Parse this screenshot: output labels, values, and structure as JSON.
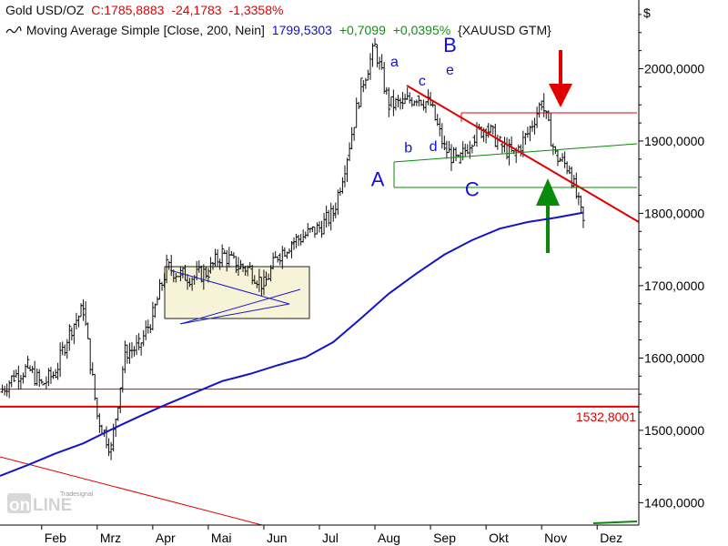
{
  "header": {
    "symbol_name": "Gold USD/OZ",
    "close_readout": "C:1785,8883",
    "change_abs": "-24,1783",
    "change_pct": "-1,3358%",
    "indicator_name": "Moving Average Simple [Close, 200, Nein]",
    "indicator_value": "1799,5303",
    "indicator_change_abs": "+0,7099",
    "indicator_change_pct": "+0,0395%",
    "instrument": "{XAUUSD GTM}"
  },
  "currency_label": "$",
  "logo": {
    "small_text": "Tradesignal",
    "big_text": "onLINE"
  },
  "colors": {
    "price_bar": "#111111",
    "moving_average": "#1414c8",
    "trendline": "#e00000",
    "support_line": "#0a8a0a",
    "down_arrow": "#e00000",
    "up_arrow": "#0a8a0a",
    "box_fill": "#f7f3d9"
  },
  "chart_data": {
    "type": "line",
    "y_axis": {
      "ticks": [
        1400,
        1500,
        1600,
        1700,
        1800,
        1900,
        2000
      ],
      "tick_labels": [
        "1400,0000",
        "1500,0000",
        "1600,0000",
        "1700,0000",
        "1800,0000",
        "1900,0000",
        "2000,0000"
      ],
      "ylim": [
        1369,
        2095
      ],
      "position": "right"
    },
    "x_axis": {
      "categories": [
        "Feb",
        "Mrz",
        "Apr",
        "Mai",
        "Jun",
        "Jul",
        "Aug",
        "Sep",
        "Okt",
        "Nov",
        "Dez"
      ],
      "label_index": [
        0,
        2,
        4,
        6,
        8,
        10,
        12,
        14,
        16,
        18,
        20
      ],
      "xlim": [
        -1.5,
        21.5
      ]
    },
    "series": [
      {
        "name": "Gold USD/OZ",
        "style": "bars",
        "x": [
          -1.5,
          -1.0,
          -0.5,
          0.0,
          0.5,
          1.0,
          1.5,
          2.0,
          2.5,
          3.0,
          3.5,
          4.0,
          4.5,
          5.0,
          5.5,
          6.0,
          6.5,
          7.0,
          7.5,
          8.0,
          8.5,
          9.0,
          9.5,
          10.0,
          10.5,
          11.0,
          11.5,
          12.0,
          12.5,
          13.0,
          13.5,
          14.0,
          14.5,
          15.0,
          15.5,
          16.0,
          16.5,
          17.0,
          17.5,
          18.0,
          18.5,
          19.0,
          19.5
        ],
        "values": [
          1553,
          1575,
          1586,
          1563,
          1580,
          1638,
          1668,
          1520,
          1474,
          1608,
          1615,
          1658,
          1726,
          1715,
          1712,
          1720,
          1745,
          1728,
          1723,
          1700,
          1742,
          1760,
          1770,
          1780,
          1800,
          1880,
          1975,
          2030,
          1950,
          1952,
          1962,
          1950,
          1890,
          1870,
          1905,
          1920,
          1895,
          1880,
          1910,
          1955,
          1880,
          1862,
          1786
        ]
      },
      {
        "name": "Moving Average Simple [Close, 200, Nein]",
        "style": "line",
        "x": [
          -1.5,
          -0.5,
          0.5,
          1.5,
          2.5,
          3.5,
          4.5,
          5.5,
          6.5,
          7.5,
          8.5,
          9.5,
          10.5,
          11.5,
          12.5,
          13.5,
          14.5,
          15.5,
          16.5,
          17.5,
          18.5,
          19.5
        ],
        "values": [
          1437,
          1452,
          1468,
          1482,
          1501,
          1519,
          1536,
          1552,
          1568,
          1578,
          1590,
          1601,
          1622,
          1655,
          1689,
          1717,
          1743,
          1763,
          1779,
          1788,
          1794,
          1801
        ]
      }
    ],
    "horizontal_levels": [
      {
        "value": 1557,
        "label": ""
      },
      {
        "value": 1532.8001,
        "label": "1532,8001"
      }
    ],
    "annotations": [
      {
        "text": "A",
        "x": 12.1,
        "y": 1838
      },
      {
        "text": "B",
        "x": 14.7,
        "y": 2023
      },
      {
        "text": "C",
        "x": 15.5,
        "y": 1824
      },
      {
        "text": "a",
        "x": 12.7,
        "y": 2003
      },
      {
        "text": "b",
        "x": 13.2,
        "y": 1884
      },
      {
        "text": "c",
        "x": 13.7,
        "y": 1977
      },
      {
        "text": "d",
        "x": 14.1,
        "y": 1886
      },
      {
        "text": "e",
        "x": 14.7,
        "y": 1992
      }
    ]
  }
}
